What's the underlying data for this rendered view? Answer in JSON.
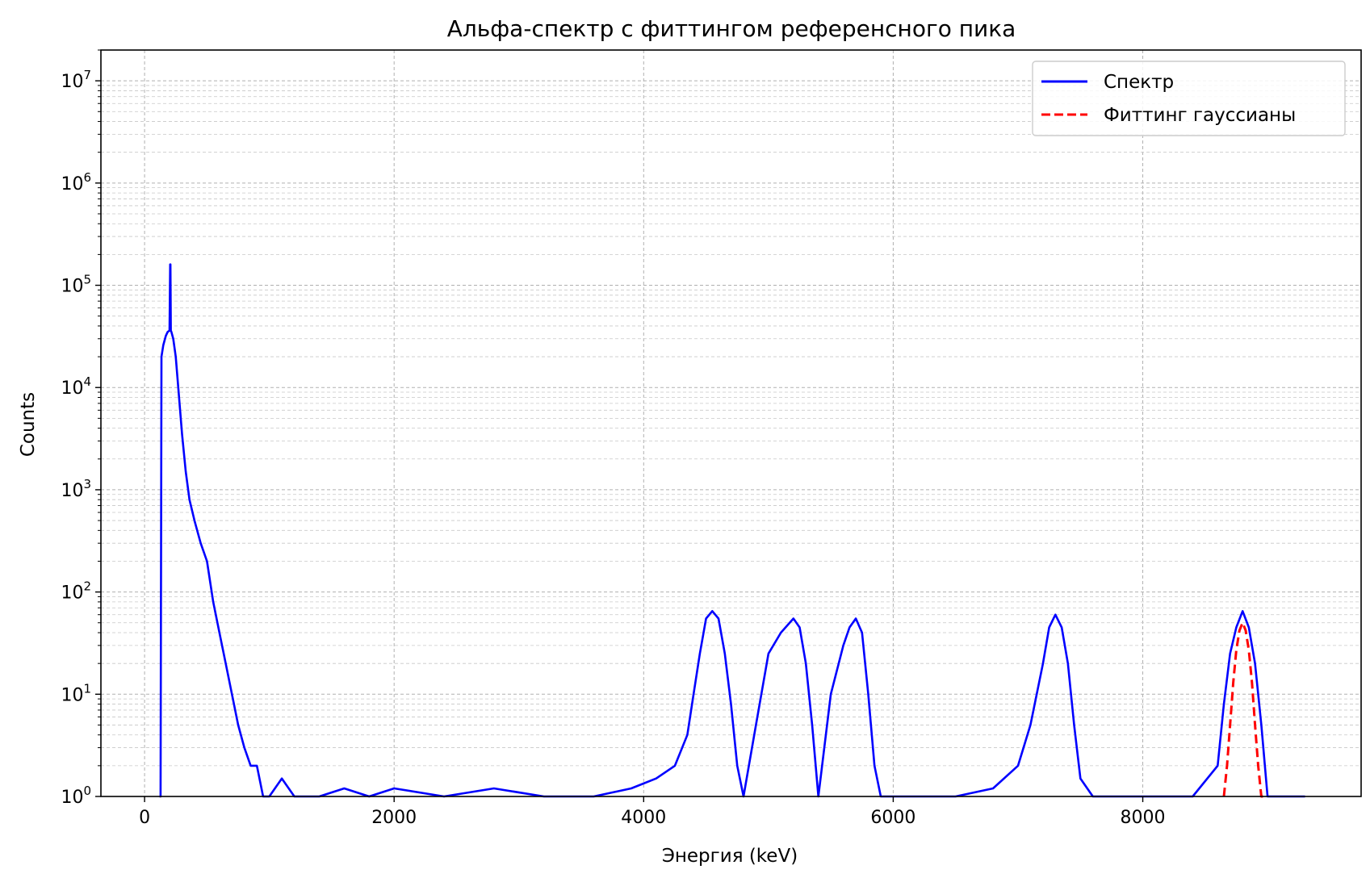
{
  "chart_data": {
    "type": "line",
    "title": "Альфа-спектр с фиттингом референсного пика",
    "xlabel": "Энергия (keV)",
    "ylabel": "Counts",
    "xlim": [
      -350,
      9750
    ],
    "ylim": [
      1,
      20000000
    ],
    "yscale": "log",
    "grid": true,
    "legend_position": "top-right",
    "x_ticks": [
      0,
      2000,
      4000,
      6000,
      8000
    ],
    "x_tick_labels": [
      "0",
      "2000",
      "4000",
      "6000",
      "8000"
    ],
    "y_ticks": [
      1,
      10,
      100,
      1000,
      10000,
      100000,
      1000000,
      10000000
    ],
    "y_tick_labels": [
      {
        "base": "10",
        "exp": "0"
      },
      {
        "base": "10",
        "exp": "1"
      },
      {
        "base": "10",
        "exp": "2"
      },
      {
        "base": "10",
        "exp": "3"
      },
      {
        "base": "10",
        "exp": "4"
      },
      {
        "base": "10",
        "exp": "5"
      },
      {
        "base": "10",
        "exp": "6"
      },
      {
        "base": "10",
        "exp": "7"
      }
    ],
    "series": [
      {
        "name": "Спектр",
        "color": "#0000ff",
        "style": "solid",
        "x": [
          120,
          128,
          135,
          150,
          170,
          185,
          200,
          205,
          207,
          210,
          215,
          230,
          250,
          270,
          300,
          330,
          360,
          400,
          450,
          500,
          550,
          600,
          650,
          700,
          750,
          800,
          850,
          900,
          950,
          1000,
          1100,
          1200,
          1400,
          1600,
          1800,
          2000,
          2400,
          2800,
          3200,
          3600,
          3900,
          4100,
          4250,
          4350,
          4400,
          4450,
          4500,
          4550,
          4600,
          4650,
          4700,
          4750,
          4800,
          4900,
          5000,
          5100,
          5200,
          5250,
          5300,
          5350,
          5400,
          5500,
          5600,
          5650,
          5700,
          5750,
          5800,
          5850,
          5900,
          6000,
          6200,
          6500,
          6800,
          7000,
          7100,
          7200,
          7250,
          7300,
          7350,
          7400,
          7450,
          7500,
          7600,
          7800,
          8000,
          8200,
          8400,
          8600,
          8650,
          8700,
          8750,
          8800,
          8850,
          8900,
          8950,
          9000,
          9100,
          9200,
          9300
        ],
        "y": [
          1,
          1,
          20000,
          26000,
          32000,
          35000,
          36000,
          160000,
          160000,
          36000,
          35000,
          30000,
          20000,
          10000,
          3500,
          1500,
          800,
          500,
          300,
          200,
          80,
          40,
          20,
          10,
          5,
          3,
          2,
          2,
          1,
          1,
          1.5,
          1,
          1,
          1.2,
          1,
          1.2,
          1,
          1.2,
          1,
          1,
          1.2,
          1.5,
          2,
          4,
          10,
          25,
          55,
          65,
          55,
          25,
          8,
          2,
          1,
          5,
          25,
          40,
          55,
          45,
          20,
          5,
          1,
          10,
          30,
          45,
          55,
          40,
          10,
          2,
          1,
          1,
          1,
          1,
          1.2,
          2,
          5,
          20,
          45,
          60,
          45,
          20,
          5,
          1.5,
          1,
          1,
          1,
          1,
          1,
          2,
          8,
          25,
          45,
          65,
          45,
          20,
          5,
          1,
          1,
          1,
          1
        ]
      },
      {
        "name": "Фиттинг гауссианы",
        "color": "#ff0000",
        "style": "dashed",
        "x": [
          8650,
          8675,
          8700,
          8725,
          8750,
          8775,
          8800,
          8825,
          8850,
          8875,
          8900,
          8925,
          8950,
          8975
        ],
        "y": [
          1,
          2,
          5,
          13,
          27,
          42,
          50,
          42,
          27,
          13,
          5,
          2,
          1,
          1
        ]
      }
    ]
  }
}
